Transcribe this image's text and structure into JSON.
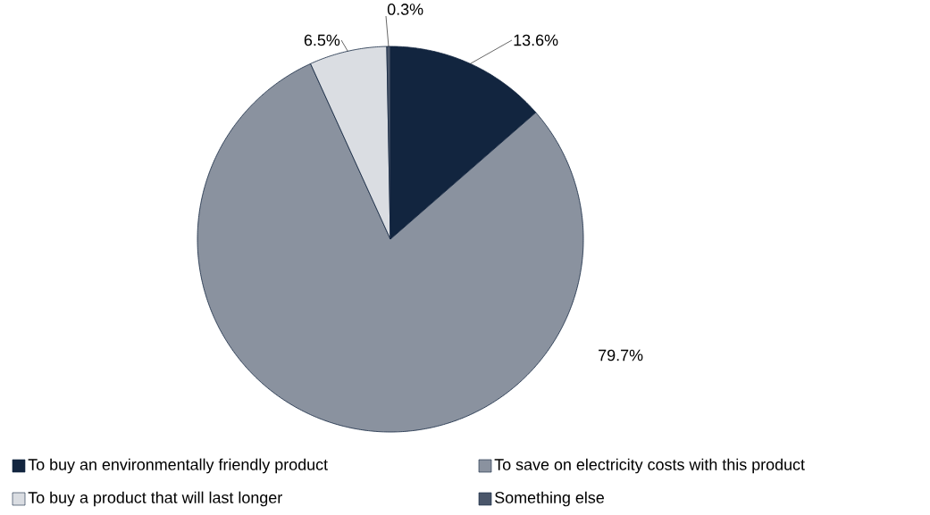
{
  "chart_data": {
    "type": "pie",
    "categories": [
      "To buy an environmentally friendly product",
      "To save on electricity costs with this product",
      "To buy a product that will last longer",
      "Something else"
    ],
    "values": [
      13.6,
      79.7,
      6.5,
      0.3
    ],
    "colors": [
      "#12253f",
      "#8a929f",
      "#dadde2",
      "#4a566a"
    ],
    "value_labels": [
      "13.6%",
      "79.7%",
      "6.5%",
      "0.3%"
    ],
    "legend": "bottom"
  }
}
